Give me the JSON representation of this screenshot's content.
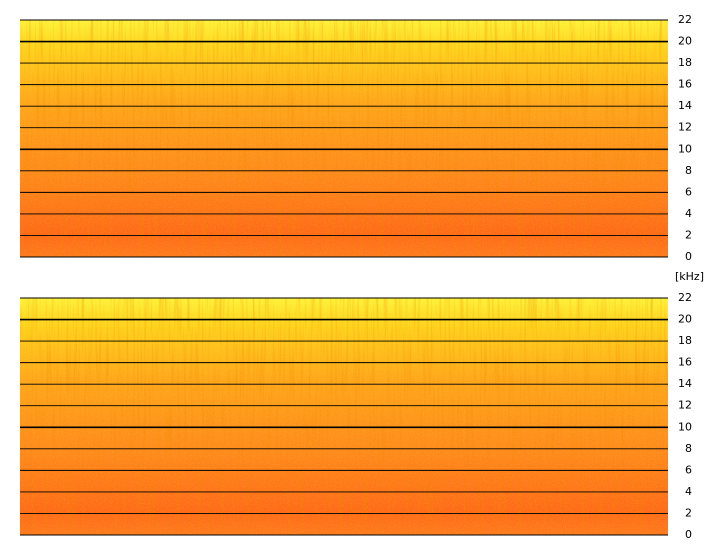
{
  "chart_data": [
    {
      "type": "spectrogram",
      "ylim": [
        0,
        22
      ],
      "yticks": [
        0,
        2,
        4,
        6,
        8,
        10,
        12,
        14,
        16,
        18,
        20,
        22
      ],
      "ylabel": "[kHz]",
      "grid": true
    },
    {
      "type": "spectrogram",
      "ylim": [
        0,
        22
      ],
      "yticks": [
        0,
        2,
        4,
        6,
        8,
        10,
        12,
        14,
        16,
        18,
        20,
        22
      ],
      "grid": true
    }
  ]
}
